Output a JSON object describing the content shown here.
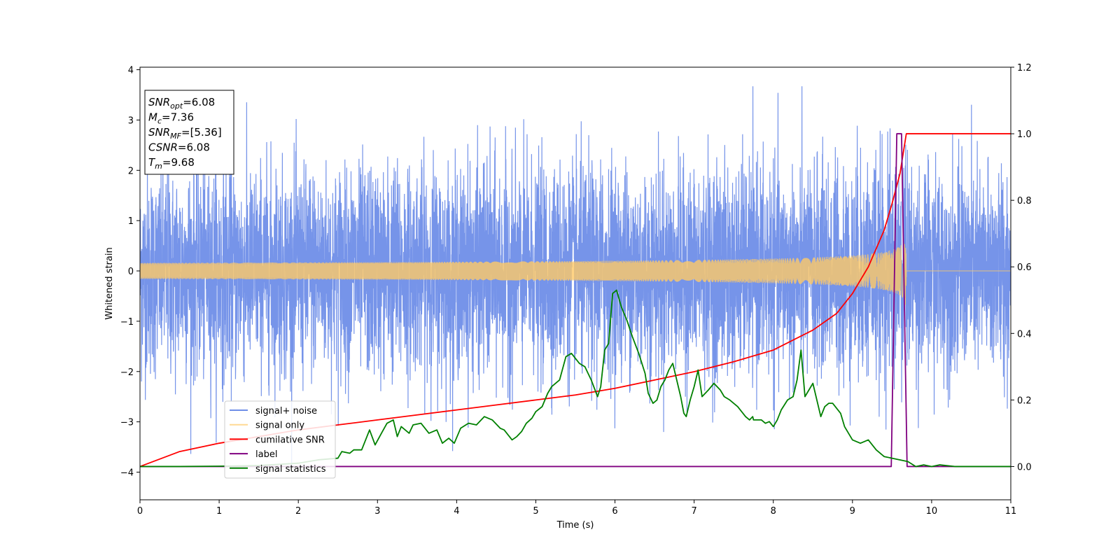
{
  "chart_data": {
    "type": "line",
    "xlabel": "Time (s)",
    "ylabel": "Whitened strain",
    "xlim": [
      0,
      11
    ],
    "ylim": [
      -4.55,
      4.05
    ],
    "y2lim": [
      -0.1,
      1.2
    ],
    "xticks": [
      0,
      1,
      2,
      3,
      4,
      5,
      6,
      7,
      8,
      9,
      10,
      11
    ],
    "yticks": [
      -4,
      -3,
      -2,
      -1,
      0,
      1,
      2,
      3,
      4
    ],
    "y2ticks": [
      "0.0",
      "0.2",
      "0.4",
      "0.6",
      "0.8",
      "1.0",
      "1.2"
    ],
    "legend_position": "lower-left",
    "grid": false,
    "annotation": {
      "lines": [
        {
          "var": "SNR",
          "sub": "opt",
          "value": "=6.08"
        },
        {
          "var": "M",
          "sub": "c",
          "value": "=7.36"
        },
        {
          "var": "SNR",
          "sub": "MF",
          "value": "=[5.36]"
        },
        {
          "var": "CSNR",
          "sub": "",
          "value": "=6.08"
        },
        {
          "var": "T",
          "sub": "m",
          "value": "=9.68"
        }
      ]
    },
    "series": [
      {
        "name": "signal+ noise",
        "color": "#6f8ee8",
        "axis": "left",
        "kind": "noise",
        "base_amplitude": 1.0,
        "approx_peak_min": -4.15,
        "approx_peak_max": 3.67
      },
      {
        "name": "signal only",
        "color": "#ffc966",
        "axis": "left",
        "kind": "chirp",
        "coalescence_time": 9.68,
        "peak_amplitude": 0.75
      },
      {
        "name": "cumilative SNR",
        "color": "#ff0000",
        "axis": "right",
        "x": [
          0,
          0.5,
          1,
          1.5,
          2,
          2.5,
          3,
          3.5,
          4,
          4.5,
          5,
          5.5,
          6,
          6.5,
          7,
          7.5,
          8,
          8.5,
          8.8,
          9.0,
          9.2,
          9.4,
          9.5,
          9.6,
          9.68,
          9.7,
          11
        ],
        "y": [
          0.0,
          0.045,
          0.07,
          0.09,
          0.11,
          0.125,
          0.14,
          0.155,
          0.17,
          0.185,
          0.2,
          0.215,
          0.235,
          0.26,
          0.285,
          0.315,
          0.35,
          0.41,
          0.46,
          0.52,
          0.6,
          0.71,
          0.79,
          0.88,
          1.0,
          1.0,
          1.0
        ]
      },
      {
        "name": "label",
        "color": "#800080",
        "axis": "right",
        "x": [
          0,
          9.49,
          9.56,
          9.62,
          9.69,
          11
        ],
        "y": [
          0,
          0,
          1,
          1,
          0,
          0
        ]
      },
      {
        "name": "signal statistics",
        "color": "#008000",
        "axis": "right",
        "x": [
          0,
          0.5,
          1,
          1.5,
          2,
          2.25,
          2.5,
          2.55,
          2.65,
          2.7,
          2.8,
          2.85,
          2.9,
          2.97,
          3.05,
          3.12,
          3.2,
          3.25,
          3.3,
          3.4,
          3.45,
          3.55,
          3.65,
          3.75,
          3.82,
          3.9,
          3.97,
          4.05,
          4.15,
          4.25,
          4.35,
          4.45,
          4.55,
          4.6,
          4.7,
          4.76,
          4.82,
          4.88,
          4.95,
          5.0,
          5.08,
          5.15,
          5.2,
          5.3,
          5.38,
          5.45,
          5.55,
          5.62,
          5.7,
          5.78,
          5.82,
          5.87,
          5.92,
          5.97,
          6.02,
          6.08,
          6.15,
          6.22,
          6.3,
          6.38,
          6.42,
          6.48,
          6.53,
          6.58,
          6.63,
          6.68,
          6.73,
          6.78,
          6.83,
          6.87,
          6.9,
          6.95,
          7.0,
          7.05,
          7.1,
          7.18,
          7.25,
          7.33,
          7.38,
          7.45,
          7.55,
          7.65,
          7.7,
          7.74,
          7.75,
          7.8,
          7.85,
          7.9,
          7.95,
          8.0,
          8.05,
          8.1,
          8.18,
          8.25,
          8.3,
          8.35,
          8.4,
          8.5,
          8.6,
          8.65,
          8.7,
          8.75,
          8.85,
          8.9,
          9.0,
          9.1,
          9.2,
          9.3,
          9.4,
          9.5,
          9.6,
          9.7,
          9.8,
          9.9,
          10.0,
          10.1,
          10.3,
          10.5,
          11.0
        ],
        "y": [
          0.0,
          0.0,
          0.001,
          0.003,
          0.01,
          0.02,
          0.025,
          0.045,
          0.04,
          0.05,
          0.05,
          0.08,
          0.11,
          0.065,
          0.1,
          0.13,
          0.14,
          0.09,
          0.12,
          0.1,
          0.125,
          0.13,
          0.1,
          0.11,
          0.07,
          0.085,
          0.07,
          0.115,
          0.13,
          0.125,
          0.15,
          0.14,
          0.115,
          0.11,
          0.08,
          0.09,
          0.105,
          0.13,
          0.145,
          0.165,
          0.18,
          0.22,
          0.24,
          0.26,
          0.33,
          0.34,
          0.31,
          0.3,
          0.26,
          0.21,
          0.24,
          0.35,
          0.37,
          0.52,
          0.53,
          0.48,
          0.44,
          0.39,
          0.34,
          0.28,
          0.22,
          0.19,
          0.2,
          0.24,
          0.26,
          0.29,
          0.31,
          0.26,
          0.21,
          0.16,
          0.15,
          0.2,
          0.24,
          0.29,
          0.21,
          0.23,
          0.25,
          0.23,
          0.21,
          0.2,
          0.18,
          0.15,
          0.14,
          0.15,
          0.14,
          0.14,
          0.14,
          0.13,
          0.135,
          0.12,
          0.14,
          0.17,
          0.2,
          0.21,
          0.26,
          0.35,
          0.21,
          0.25,
          0.15,
          0.18,
          0.19,
          0.19,
          0.16,
          0.12,
          0.08,
          0.07,
          0.08,
          0.05,
          0.03,
          0.025,
          0.02,
          0.015,
          0.0,
          0.005,
          0.0,
          0.005,
          0.0,
          0.0,
          0.0
        ]
      }
    ]
  }
}
